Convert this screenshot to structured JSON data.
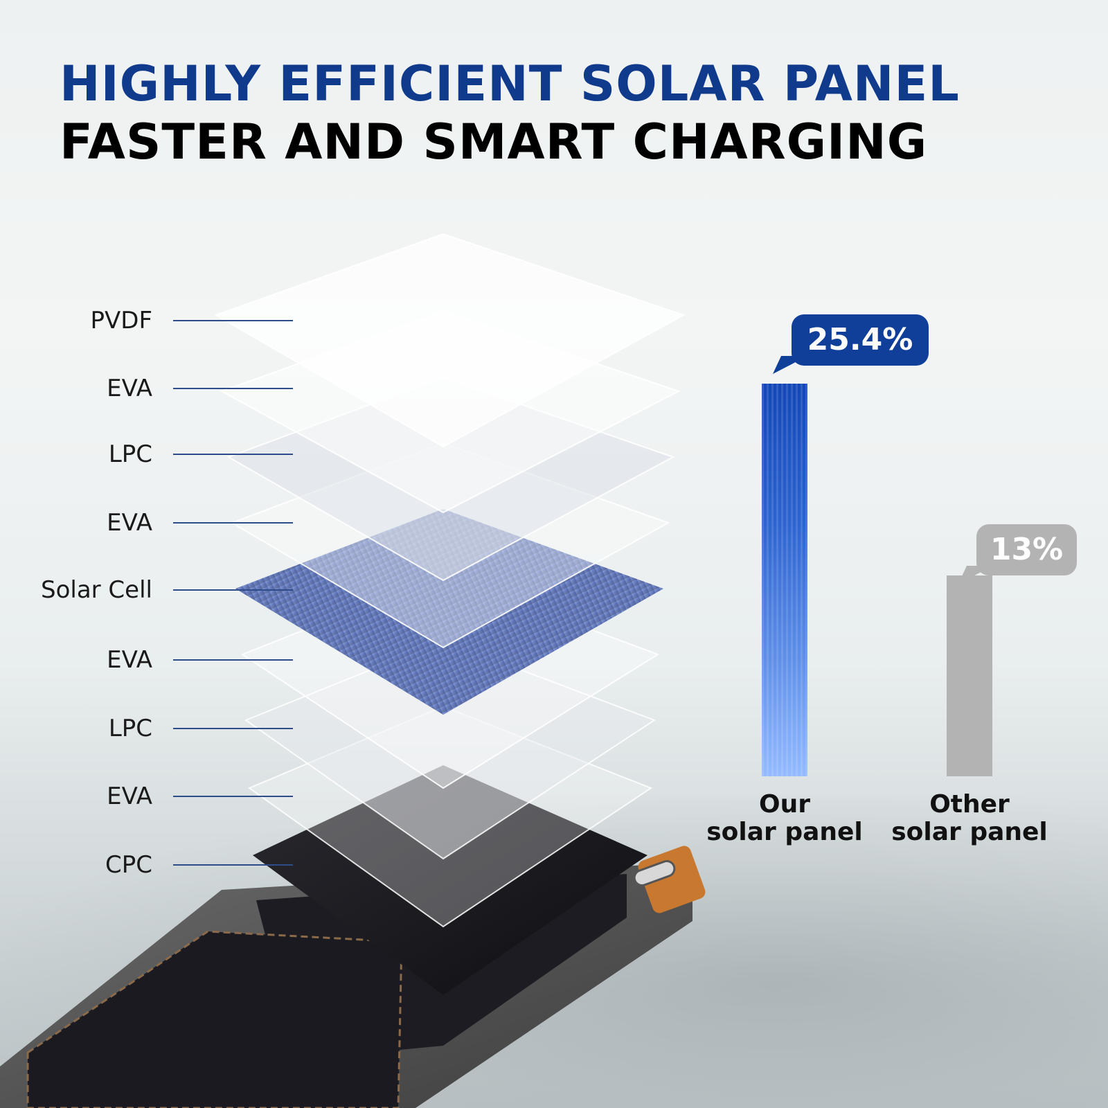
{
  "headline": {
    "line1": "HIGHLY EFFICIENT SOLAR PANEL",
    "line2": "FASTER AND SMART CHARGING"
  },
  "layers": [
    "PVDF",
    "EVA",
    "LPC",
    "EVA",
    "Solar Cell",
    "EVA",
    "LPC",
    "EVA",
    "CPC"
  ],
  "colors": {
    "headline_blue": "#103a8c",
    "ours_bar_top": "#1347b8",
    "ours_bar_bottom": "#94bbff",
    "other_bar": "#b3b3b3"
  },
  "chart_data": {
    "type": "bar",
    "categories": [
      "Our solar panel",
      "Other solar panel"
    ],
    "values": [
      25.4,
      13
    ],
    "value_labels": [
      "25.4%",
      "13%"
    ],
    "category_lines": [
      [
        "Our",
        "solar panel"
      ],
      [
        "Other",
        "solar panel"
      ]
    ],
    "ylim": [
      0,
      25.4
    ]
  }
}
